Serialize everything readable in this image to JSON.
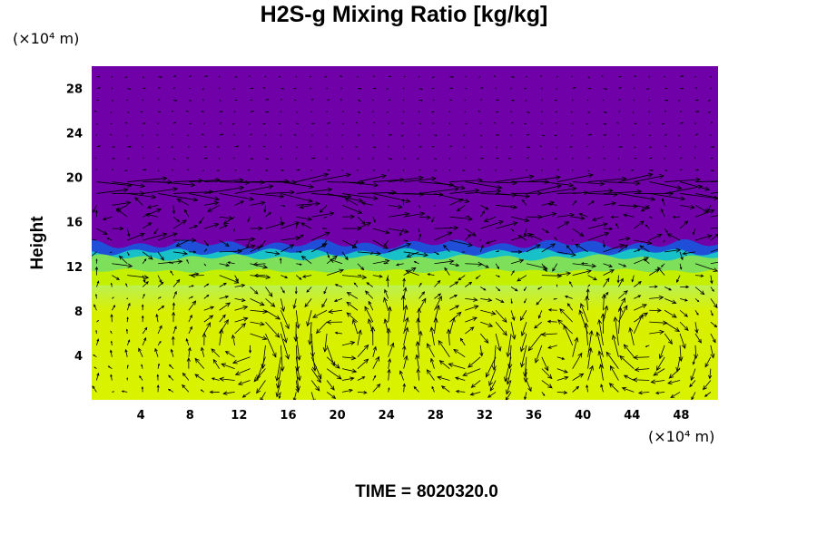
{
  "chart_data": {
    "type": "heatmap",
    "title": "H2S-g Mixing Ratio [kg/kg]",
    "ylabel": "Height",
    "x_unit_label": "(×10⁴ m)",
    "y_unit_label": "(×10⁴ m)",
    "time_label": "TIME =",
    "time_value": "8020320.0",
    "xlim": [
      0,
      51
    ],
    "ylim": [
      0,
      30
    ],
    "x_ticks": [
      4,
      8,
      12,
      16,
      20,
      24,
      28,
      32,
      36,
      40,
      44,
      48
    ],
    "y_ticks": [
      4,
      8,
      12,
      16,
      20,
      24,
      28
    ],
    "layers": [
      {
        "name": "lower",
        "from": 0,
        "to": 10.5,
        "color": "#d8f000"
      },
      {
        "name": "transition",
        "from": 10.5,
        "to": 12.0,
        "color": "#7ee05a"
      },
      {
        "name": "interface",
        "from": 12.0,
        "to": 13.5,
        "color": "#1f4fd8"
      },
      {
        "name": "upper",
        "from": 13.5,
        "to": 30,
        "color": "#7000a8"
      }
    ],
    "vectors": "wind vector arrows overlay"
  }
}
